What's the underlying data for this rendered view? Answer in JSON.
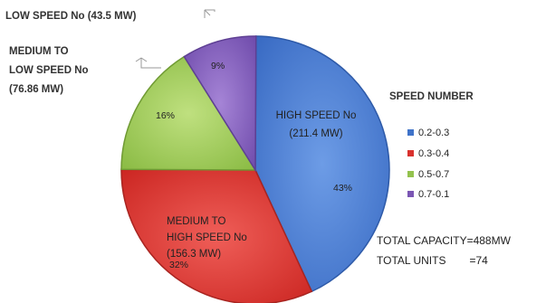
{
  "chart_data": {
    "type": "pie",
    "title": "",
    "slices": [
      {
        "key": "high",
        "label_lines": [
          "HIGH SPEED No",
          "(211.4 MW)"
        ],
        "percent_label": "43%",
        "value": 43,
        "color": "#4a7fd2",
        "edge": "#2e5aa8"
      },
      {
        "key": "medhigh",
        "label_lines": [
          "MEDIUM TO",
          "HIGH SPEED No",
          "(156.3 MW)"
        ],
        "percent_label": "32%",
        "value": 32,
        "color": "#e43d39",
        "edge": "#a82420"
      },
      {
        "key": "medlow",
        "label_lines": [
          "MEDIUM TO",
          "LOW  SPEED No",
          "(76.86 MW)"
        ],
        "percent_label": "16%",
        "value": 16,
        "color": "#9fce5a",
        "edge": "#6f9a33"
      },
      {
        "key": "low",
        "label_lines": [
          "LOW SPEED No (43.5 MW)"
        ],
        "percent_label": "9%",
        "value": 9,
        "color": "#8763bf",
        "edge": "#5e3f93"
      }
    ],
    "legend": {
      "title": "SPEED NUMBER",
      "placement": "right",
      "entries": [
        {
          "label": "0.2-0.3",
          "color": "#3f73c9"
        },
        {
          "label": "0.3-0.4",
          "color": "#d9322e"
        },
        {
          "label": "0.5-0.7",
          "color": "#93c24e"
        },
        {
          "label": "0.7-0.1",
          "color": "#7b56b4"
        }
      ]
    },
    "totals": [
      {
        "label": "TOTAL CAPACITY",
        "value": "=488MW"
      },
      {
        "label": "TOTAL UNITS",
        "value": "=74"
      }
    ]
  }
}
